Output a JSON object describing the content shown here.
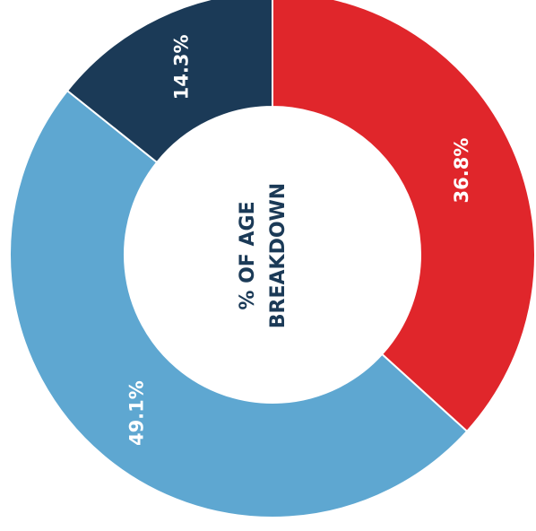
{
  "chart_data": {
    "type": "pie",
    "title_lines": [
      "% OF AGE",
      "BREAKDOWN"
    ],
    "slices": [
      {
        "value": 36.8,
        "label": "36.8%",
        "color": "#e0262b"
      },
      {
        "value": 49.1,
        "label": "49.1%",
        "color": "#5ea7d1"
      },
      {
        "value": 14.3,
        "label": "14.3%",
        "color": "#1b3a57"
      }
    ],
    "start_angle_deg": -90
  }
}
